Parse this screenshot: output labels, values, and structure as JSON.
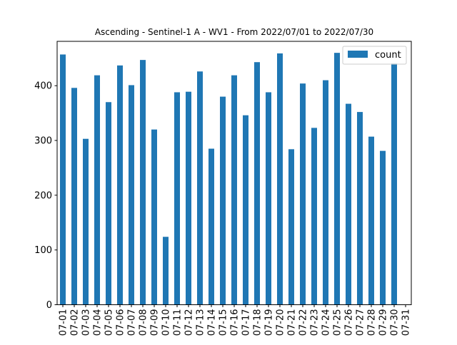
{
  "chart_data": {
    "type": "bar",
    "title": "Ascending - Sentinel-1 A - WV1 - From 2022/07/01 to 2022/07/30",
    "xlabel": "",
    "ylabel": "",
    "categories": [
      "07-01",
      "07-02",
      "07-03",
      "07-04",
      "07-05",
      "07-06",
      "07-07",
      "07-08",
      "07-09",
      "07-10",
      "07-11",
      "07-12",
      "07-13",
      "07-14",
      "07-15",
      "07-16",
      "07-17",
      "07-18",
      "07-19",
      "07-20",
      "07-21",
      "07-22",
      "07-23",
      "07-24",
      "07-25",
      "07-26",
      "07-27",
      "07-28",
      "07-29",
      "07-30",
      "07-31"
    ],
    "series": [
      {
        "name": "count",
        "color": "#1f77b4",
        "values": [
          457,
          396,
          303,
          419,
          370,
          437,
          401,
          447,
          320,
          124,
          388,
          389,
          426,
          285,
          380,
          419,
          346,
          443,
          388,
          459,
          284,
          404,
          323,
          410,
          460,
          367,
          352,
          307,
          281,
          441,
          0
        ]
      }
    ],
    "yticks": [
      0,
      100,
      200,
      300,
      400
    ],
    "ylim": [
      0,
      481
    ],
    "grid": false,
    "legend": "top-right"
  }
}
